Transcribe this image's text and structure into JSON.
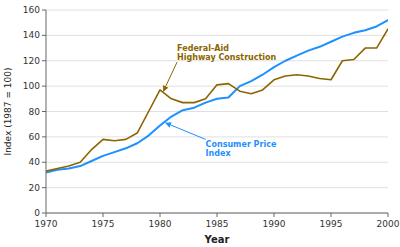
{
  "chart_data": {
    "type": "line",
    "x_label": "Year",
    "y_label": "Index (1987 = 100)",
    "x": [
      1970,
      1971,
      1972,
      1973,
      1974,
      1975,
      1976,
      1977,
      1978,
      1979,
      1980,
      1981,
      1982,
      1983,
      1984,
      1985,
      1986,
      1987,
      1988,
      1989,
      1990,
      1991,
      1992,
      1993,
      1994,
      1995,
      1996,
      1997,
      1998,
      1999,
      2000
    ],
    "series": [
      {
        "color": "#1E90FF",
        "values": [
          32,
          34,
          35,
          37,
          41,
          45,
          48,
          51,
          55,
          61,
          69,
          76,
          81,
          83,
          87,
          90,
          91,
          100,
          104,
          109,
          115,
          120,
          124,
          128,
          131,
          135,
          139,
          142,
          144,
          147,
          152
        ]
      },
      {
        "color": "#8B6500",
        "values": [
          33,
          35,
          37,
          40,
          50,
          58,
          57,
          58,
          63,
          80,
          97,
          90,
          87,
          87,
          90,
          101,
          102,
          96,
          94,
          97,
          105,
          108,
          109,
          108,
          106,
          105,
          120,
          121,
          130,
          130,
          145
        ]
      }
    ],
    "xlim": [
      1970,
      2000
    ],
    "ylim": [
      0,
      160
    ],
    "xticks": [
      1970,
      1975,
      1980,
      1985,
      1990,
      1995,
      2000
    ],
    "yticks": [
      0,
      20,
      40,
      60,
      80,
      100,
      120,
      140,
      160
    ],
    "grid": "y",
    "annotations": [
      {
        "text": "Federal-Aid\nHighway Construction",
        "color": "#8B6500",
        "x": 1980.3,
        "y": 96,
        "text_x": 1981.5,
        "text_y": 119
      },
      {
        "text": "Consumer Price\nIndex",
        "color": "#1E90FF",
        "x": 1980.5,
        "y": 71,
        "text_x": 1984.0,
        "text_y": 58
      }
    ]
  }
}
